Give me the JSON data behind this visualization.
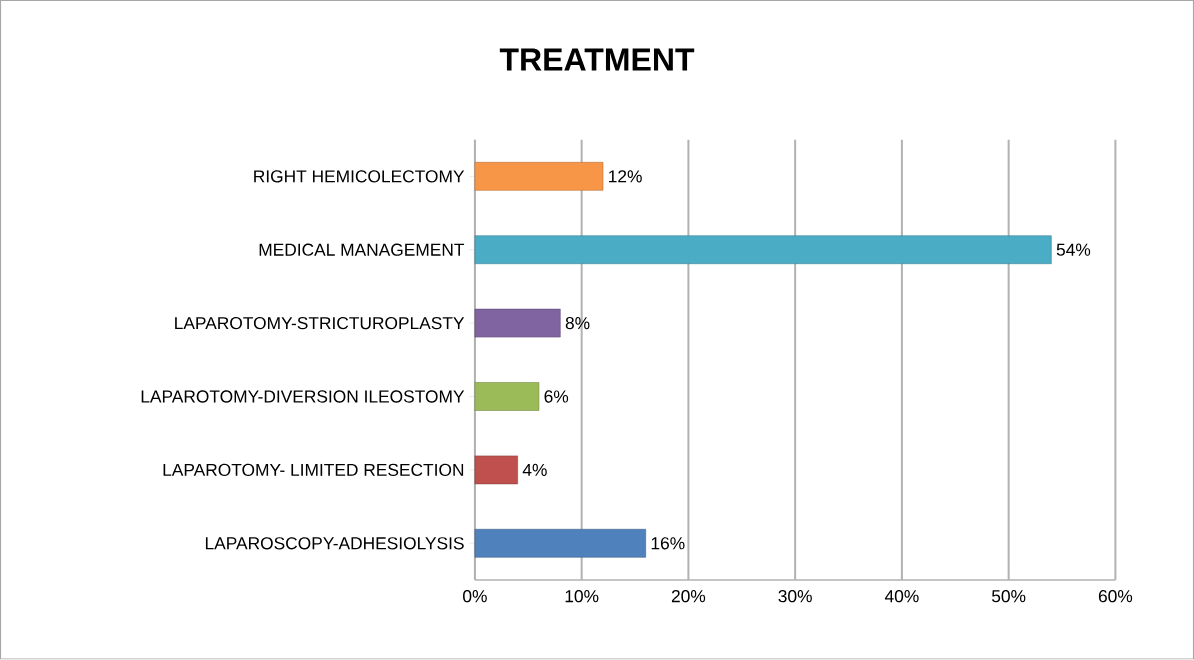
{
  "chart_data": {
    "type": "bar",
    "orientation": "horizontal",
    "title": "TREATMENT",
    "categories": [
      "RIGHT HEMICOLECTOMY",
      "MEDICAL MANAGEMENT",
      "LAPAROTOMY-STRICTUROPLASTY",
      "LAPAROTOMY-DIVERSION ILEOSTOMY",
      "LAPAROTOMY- LIMITED RESECTION",
      "LAPAROSCOPY-ADHESIOLYSIS"
    ],
    "values": [
      12,
      54,
      8,
      6,
      4,
      16
    ],
    "value_labels": [
      "12%",
      "54%",
      "8%",
      "6%",
      "4%",
      "16%"
    ],
    "colors": [
      "#f79646",
      "#4bacc6",
      "#8064a2",
      "#9bbb59",
      "#c0504d",
      "#4f81bd"
    ],
    "xlim": [
      0,
      60
    ],
    "xticks": [
      {
        "value": 0,
        "label": "0%"
      },
      {
        "value": 10,
        "label": "10%"
      },
      {
        "value": 20,
        "label": "20%"
      },
      {
        "value": 30,
        "label": "30%"
      },
      {
        "value": 40,
        "label": "40%"
      },
      {
        "value": 50,
        "label": "50%"
      },
      {
        "value": 60,
        "label": "60%"
      }
    ],
    "grid": "x"
  }
}
